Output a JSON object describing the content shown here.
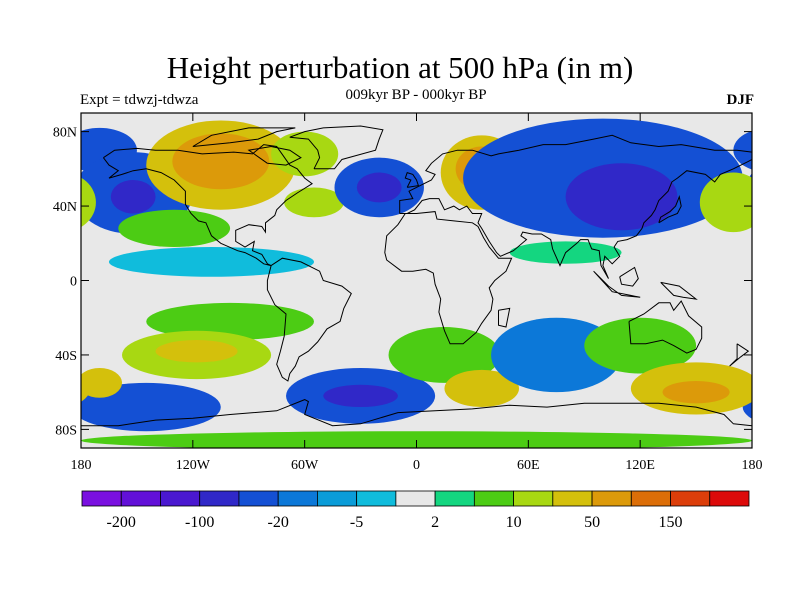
{
  "title": "Height perturbation at 500 hPa (in m)",
  "experiment_label": "Expt = tdwzj-tdwza",
  "subtitle": "009kyr BP - 000kyr BP",
  "season": "DJF",
  "colors": {
    "land_outline": "#000000",
    "background_band": "#e8e8e8"
  },
  "chart_data": {
    "type": "heatmap",
    "projection": "cylindrical-equidistant",
    "xlim": [
      -180,
      180
    ],
    "ylim": [
      -90,
      90
    ],
    "x_ticks": [
      {
        "value": -180,
        "label": "180"
      },
      {
        "value": -120,
        "label": "120W"
      },
      {
        "value": -60,
        "label": "60W"
      },
      {
        "value": 0,
        "label": "0"
      },
      {
        "value": 60,
        "label": "60E"
      },
      {
        "value": 120,
        "label": "120E"
      },
      {
        "value": 180,
        "label": "180"
      }
    ],
    "y_ticks": [
      {
        "value": 80,
        "label": "80N"
      },
      {
        "value": 40,
        "label": "40N"
      },
      {
        "value": 0,
        "label": "0"
      },
      {
        "value": -40,
        "label": "40S"
      },
      {
        "value": -80,
        "label": "80S"
      }
    ],
    "colorbar": {
      "levels": [
        -200,
        -150,
        -100,
        -50,
        -20,
        -10,
        -5,
        -2,
        2,
        5,
        10,
        20,
        50,
        100,
        150
      ],
      "colors": [
        "#7a10e0",
        "#6210d8",
        "#4a18d0",
        "#3028c8",
        "#1450d4",
        "#0c78d8",
        "#0a9cd8",
        "#10bcdc",
        "#e8e8e8",
        "#14d680",
        "#4ccc14",
        "#a8d812",
        "#d4c00c",
        "#dc9a0a",
        "#dc6e08",
        "#dc3e0a",
        "#dc0a0a"
      ],
      "labels": [
        {
          "level": -200,
          "label": "-200"
        },
        {
          "level": -100,
          "label": "-100"
        },
        {
          "level": -20,
          "label": "-20"
        },
        {
          "level": -5,
          "label": "-5"
        },
        {
          "level": 2,
          "label": "2"
        },
        {
          "level": 10,
          "label": "10"
        },
        {
          "level": 50,
          "label": "50"
        },
        {
          "level": 150,
          "label": "150"
        }
      ]
    },
    "field_blobs": [
      {
        "lon": -170,
        "lat": 70,
        "rx": 20,
        "ry": 12,
        "value": -40
      },
      {
        "lon": -152,
        "lat": 47,
        "rx": 32,
        "ry": 22,
        "value": -35
      },
      {
        "lon": -152,
        "lat": 45,
        "rx": 12,
        "ry": 9,
        "value": -70
      },
      {
        "lon": -105,
        "lat": 62,
        "rx": 40,
        "ry": 24,
        "value": 30
      },
      {
        "lon": -105,
        "lat": 64,
        "rx": 26,
        "ry": 15,
        "value": 55
      },
      {
        "lon": -130,
        "lat": 28,
        "rx": 30,
        "ry": 10,
        "value": 8
      },
      {
        "lon": -60,
        "lat": 68,
        "rx": 18,
        "ry": 12,
        "value": 12
      },
      {
        "lon": -55,
        "lat": 42,
        "rx": 16,
        "ry": 8,
        "value": 15
      },
      {
        "lon": -20,
        "lat": 50,
        "rx": 24,
        "ry": 16,
        "value": -40
      },
      {
        "lon": -20,
        "lat": 50,
        "rx": 12,
        "ry": 8,
        "value": -70
      },
      {
        "lon": 35,
        "lat": 58,
        "rx": 22,
        "ry": 20,
        "value": 20
      },
      {
        "lon": 35,
        "lat": 60,
        "rx": 14,
        "ry": 12,
        "value": 55
      },
      {
        "lon": 100,
        "lat": 55,
        "rx": 75,
        "ry": 32,
        "value": -35
      },
      {
        "lon": 110,
        "lat": 45,
        "rx": 30,
        "ry": 18,
        "value": -70
      },
      {
        "lon": 170,
        "lat": 42,
        "rx": 18,
        "ry": 16,
        "value": 18
      },
      {
        "lon": -110,
        "lat": 10,
        "rx": 55,
        "ry": 8,
        "value": -4
      },
      {
        "lon": 80,
        "lat": 15,
        "rx": 30,
        "ry": 6,
        "value": 4
      },
      {
        "lon": -100,
        "lat": -22,
        "rx": 45,
        "ry": 10,
        "value": 5
      },
      {
        "lon": -118,
        "lat": -40,
        "rx": 40,
        "ry": 13,
        "value": 15
      },
      {
        "lon": -118,
        "lat": -38,
        "rx": 22,
        "ry": 6,
        "value": 35
      },
      {
        "lon": -30,
        "lat": -62,
        "rx": 40,
        "ry": 15,
        "value": -30
      },
      {
        "lon": -30,
        "lat": -62,
        "rx": 20,
        "ry": 6,
        "value": -70
      },
      {
        "lon": -145,
        "lat": -68,
        "rx": 40,
        "ry": 13,
        "value": -30
      },
      {
        "lon": -170,
        "lat": -55,
        "rx": 12,
        "ry": 8,
        "value": 35
      },
      {
        "lon": 15,
        "lat": -40,
        "rx": 30,
        "ry": 15,
        "value": 8
      },
      {
        "lon": 35,
        "lat": -58,
        "rx": 20,
        "ry": 10,
        "value": 20
      },
      {
        "lon": 75,
        "lat": -40,
        "rx": 35,
        "ry": 20,
        "value": -15
      },
      {
        "lon": 120,
        "lat": -35,
        "rx": 30,
        "ry": 15,
        "value": 8
      },
      {
        "lon": 150,
        "lat": -58,
        "rx": 35,
        "ry": 14,
        "value": 30
      },
      {
        "lon": 150,
        "lat": -60,
        "rx": 18,
        "ry": 6,
        "value": 55
      },
      {
        "lon": 0,
        "lat": -86,
        "rx": 180,
        "ry": 5,
        "value": 8
      }
    ]
  }
}
